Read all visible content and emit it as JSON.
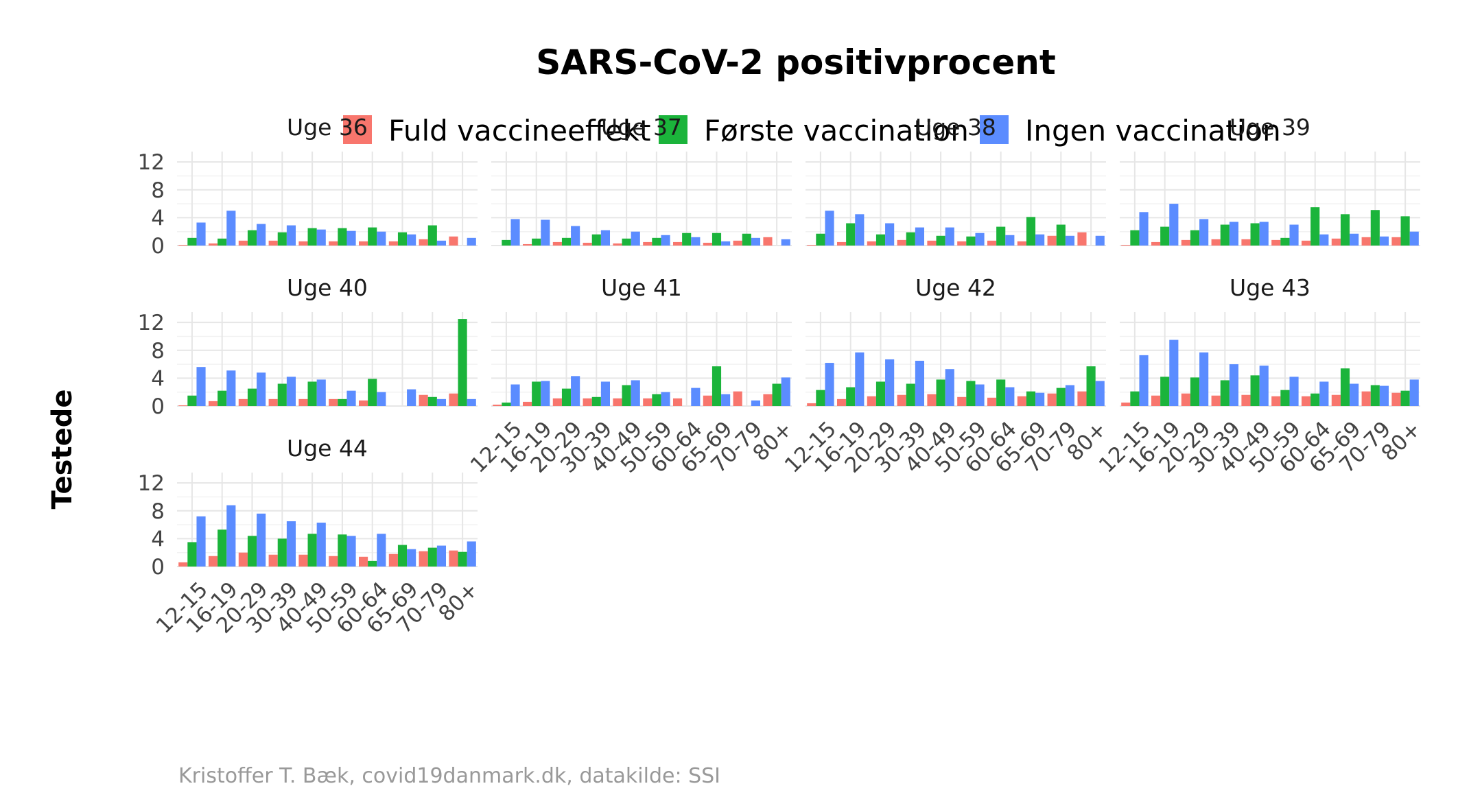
{
  "chart_data": {
    "type": "bar",
    "title": "SARS-CoV-2 positivprocent",
    "ylabel": "Testede",
    "caption": "Kristoffer T. Bæk, covid19danmark.dk, datakilde: SSI",
    "legend_position": "top",
    "ylim": [
      0,
      13
    ],
    "yticks": [
      0,
      4,
      8,
      12
    ],
    "grid": true,
    "categories": [
      "12-15",
      "16-19",
      "20-29",
      "30-39",
      "40-49",
      "50-59",
      "60-64",
      "65-69",
      "70-79",
      "80+"
    ],
    "series_names": [
      "Fuld vaccineeffekt",
      "Første vaccination",
      "Ingen vaccination"
    ],
    "series_colors": [
      "#F8766D",
      "#1BB43B",
      "#5B8CFF"
    ],
    "panels": [
      {
        "label": "Uge 36",
        "values": [
          [
            0.1,
            0.3,
            0.7,
            0.7,
            0.6,
            0.6,
            0.6,
            0.6,
            0.9,
            1.3
          ],
          [
            1.1,
            1.0,
            2.2,
            1.9,
            2.5,
            2.5,
            2.6,
            1.9,
            2.9,
            0.0
          ],
          [
            3.3,
            5.0,
            3.1,
            2.9,
            2.3,
            2.1,
            2.0,
            1.6,
            0.7,
            1.1
          ]
        ]
      },
      {
        "label": "Uge 37",
        "values": [
          [
            0.0,
            0.2,
            0.5,
            0.4,
            0.3,
            0.5,
            0.5,
            0.4,
            0.7,
            1.2
          ],
          [
            0.8,
            1.0,
            1.1,
            1.6,
            1.0,
            1.1,
            1.8,
            1.8,
            1.7,
            0.0
          ],
          [
            3.8,
            3.7,
            2.8,
            2.2,
            2.0,
            1.5,
            1.2,
            0.6,
            1.1,
            0.9
          ]
        ]
      },
      {
        "label": "Uge 38",
        "values": [
          [
            0.1,
            0.5,
            0.6,
            0.8,
            0.7,
            0.6,
            0.7,
            0.6,
            1.4,
            1.9
          ],
          [
            1.7,
            3.2,
            1.6,
            1.9,
            1.4,
            1.3,
            2.7,
            4.1,
            3.0,
            0.0
          ],
          [
            5.0,
            4.5,
            3.2,
            2.6,
            2.6,
            1.8,
            1.5,
            1.6,
            1.4,
            1.4
          ]
        ]
      },
      {
        "label": "Uge 39",
        "values": [
          [
            0.1,
            0.5,
            0.8,
            0.9,
            0.9,
            0.8,
            0.7,
            1.0,
            1.2,
            1.2
          ],
          [
            2.2,
            2.7,
            2.2,
            3.0,
            3.2,
            1.1,
            5.5,
            4.5,
            5.1,
            4.2
          ],
          [
            4.8,
            6.0,
            3.8,
            3.4,
            3.4,
            3.0,
            1.6,
            1.7,
            1.3,
            2.0
          ]
        ]
      },
      {
        "label": "Uge 40",
        "values": [
          [
            0.1,
            0.7,
            1.0,
            1.0,
            1.0,
            1.0,
            0.8,
            0.0,
            1.6,
            1.8
          ],
          [
            1.5,
            2.2,
            2.5,
            3.2,
            3.5,
            1.0,
            3.9,
            0.0,
            1.3,
            12.5
          ],
          [
            5.6,
            5.1,
            4.8,
            4.2,
            3.8,
            2.2,
            2.0,
            2.4,
            1.0,
            1.0
          ]
        ]
      },
      {
        "label": "Uge 41",
        "values": [
          [
            0.2,
            0.6,
            1.1,
            1.1,
            1.1,
            1.1,
            1.1,
            1.5,
            2.1,
            1.7
          ],
          [
            0.5,
            3.5,
            2.5,
            1.3,
            3.0,
            1.7,
            0.0,
            5.7,
            0.0,
            3.2
          ],
          [
            3.1,
            3.6,
            4.3,
            3.5,
            3.7,
            2.0,
            2.6,
            1.7,
            0.8,
            4.1
          ]
        ]
      },
      {
        "label": "Uge 42",
        "values": [
          [
            0.4,
            1.0,
            1.4,
            1.6,
            1.7,
            1.3,
            1.2,
            1.4,
            1.8,
            2.1
          ],
          [
            2.3,
            2.7,
            3.5,
            3.2,
            3.8,
            3.6,
            3.8,
            2.1,
            2.6,
            5.7
          ],
          [
            6.2,
            7.7,
            6.7,
            6.5,
            5.3,
            3.1,
            2.7,
            1.9,
            3.0,
            3.6
          ]
        ]
      },
      {
        "label": "Uge 43",
        "values": [
          [
            0.5,
            1.5,
            1.8,
            1.5,
            1.6,
            1.4,
            1.4,
            1.6,
            2.1,
            1.9
          ],
          [
            2.1,
            4.2,
            4.1,
            3.7,
            4.4,
            2.3,
            1.8,
            5.4,
            3.0,
            2.2
          ],
          [
            7.3,
            9.5,
            7.7,
            6.0,
            5.8,
            4.2,
            3.5,
            3.2,
            2.9,
            3.8
          ]
        ]
      },
      {
        "label": "Uge 44",
        "values": [
          [
            0.6,
            1.5,
            2.0,
            1.7,
            1.7,
            1.5,
            1.4,
            1.8,
            2.2,
            2.3
          ],
          [
            3.5,
            5.3,
            4.4,
            4.0,
            4.7,
            4.6,
            0.8,
            3.1,
            2.7,
            2.1
          ],
          [
            7.2,
            8.8,
            7.6,
            6.5,
            6.3,
            4.4,
            4.7,
            2.5,
            3.0,
            3.6
          ]
        ]
      }
    ]
  }
}
